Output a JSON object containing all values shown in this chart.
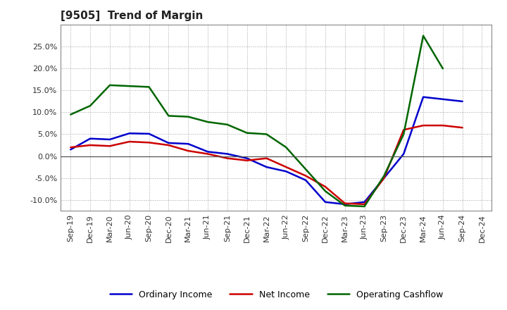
{
  "title": "[9505]  Trend of Margin",
  "x_labels": [
    "Sep-19",
    "Dec-19",
    "Mar-20",
    "Jun-20",
    "Sep-20",
    "Dec-20",
    "Mar-21",
    "Jun-21",
    "Sep-21",
    "Dec-21",
    "Mar-22",
    "Jun-22",
    "Sep-22",
    "Dec-22",
    "Mar-23",
    "Jun-23",
    "Sep-23",
    "Dec-23",
    "Mar-24",
    "Jun-24",
    "Sep-24",
    "Dec-24"
  ],
  "ordinary_income": [
    1.5,
    4.0,
    3.8,
    5.2,
    5.1,
    3.0,
    2.8,
    1.0,
    0.5,
    -0.5,
    -2.5,
    -3.5,
    -5.5,
    -10.5,
    -11.0,
    -10.5,
    -5.0,
    0.5,
    13.5,
    13.0,
    12.5,
    null
  ],
  "net_income": [
    2.0,
    2.5,
    2.3,
    3.3,
    3.1,
    2.5,
    1.2,
    0.5,
    -0.5,
    -1.0,
    -0.5,
    -2.5,
    -4.5,
    -7.0,
    -10.8,
    -11.0,
    -5.0,
    6.0,
    7.0,
    7.0,
    6.5,
    null
  ],
  "operating_cashflow": [
    9.5,
    11.5,
    16.2,
    16.0,
    15.8,
    9.2,
    9.0,
    7.8,
    7.2,
    5.3,
    5.0,
    2.0,
    -3.0,
    -8.0,
    -11.3,
    -11.5,
    -4.5,
    5.0,
    27.5,
    20.0,
    null,
    null
  ],
  "ylim": [
    -12.5,
    30.0
  ],
  "yticks": [
    -10.0,
    -5.0,
    0.0,
    5.0,
    10.0,
    15.0,
    20.0,
    25.0
  ],
  "colors": {
    "ordinary_income": "#0000cc",
    "net_income": "#cc0000",
    "operating_cashflow": "#006600"
  },
  "legend_labels": [
    "Ordinary Income",
    "Net Income",
    "Operating Cashflow"
  ],
  "background_color": "#ffffff",
  "grid_color": "#999999",
  "line_width": 1.8
}
